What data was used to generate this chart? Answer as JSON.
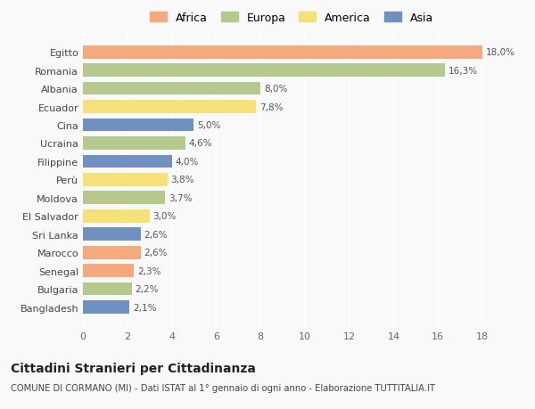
{
  "countries": [
    "Bangladesh",
    "Bulgaria",
    "Senegal",
    "Marocco",
    "Sri Lanka",
    "El Salvador",
    "Moldova",
    "Perù",
    "Filippine",
    "Ucraina",
    "Cina",
    "Ecuador",
    "Albania",
    "Romania",
    "Egitto"
  ],
  "values": [
    2.1,
    2.2,
    2.3,
    2.6,
    2.6,
    3.0,
    3.7,
    3.8,
    4.0,
    4.6,
    5.0,
    7.8,
    8.0,
    16.3,
    18.0
  ],
  "continents": [
    "Asia",
    "Europa",
    "Africa",
    "Africa",
    "Asia",
    "America",
    "Europa",
    "America",
    "Asia",
    "Europa",
    "Asia",
    "America",
    "Europa",
    "Europa",
    "Africa"
  ],
  "labels": [
    "2,1%",
    "2,2%",
    "2,3%",
    "2,6%",
    "2,6%",
    "3,0%",
    "3,7%",
    "3,8%",
    "4,0%",
    "4,6%",
    "5,0%",
    "7,8%",
    "8,0%",
    "16,3%",
    "18,0%"
  ],
  "colors": {
    "Africa": "#F4A97F",
    "Europa": "#B5C98E",
    "America": "#F5E07A",
    "Asia": "#7090C0"
  },
  "legend_order": [
    "Africa",
    "Europa",
    "America",
    "Asia"
  ],
  "title": "Cittadini Stranieri per Cittadinanza",
  "subtitle": "COMUNE DI CORMANO (MI) - Dati ISTAT al 1° gennaio di ogni anno - Elaborazione TUTTITALIA.IT",
  "xlim": [
    0,
    18
  ],
  "xticks": [
    0,
    2,
    4,
    6,
    8,
    10,
    12,
    14,
    16,
    18
  ],
  "background_color": "#f9f9f9",
  "bar_height": 0.72,
  "figsize": [
    6.0,
    4.6
  ],
  "dpi": 100
}
